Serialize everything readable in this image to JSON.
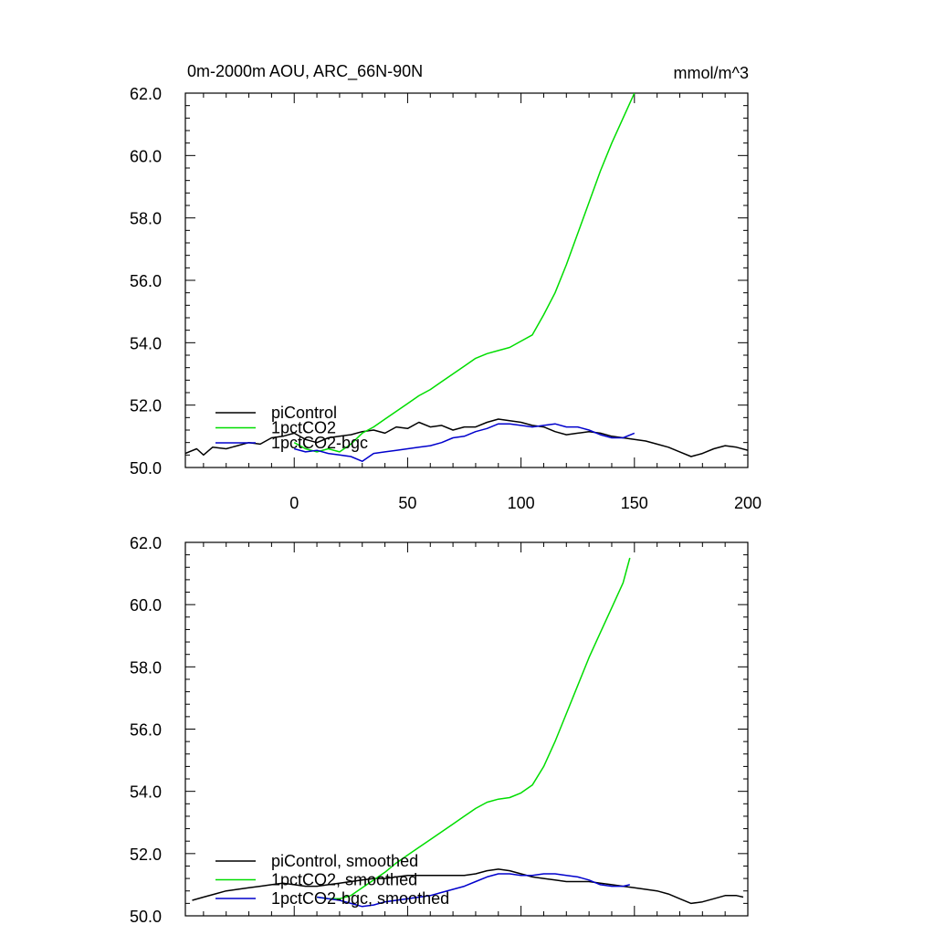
{
  "header": {
    "title": "0m-2000m AOU, ARC_66N-90N",
    "units": "mmol/m^3"
  },
  "chart_data": [
    {
      "type": "line",
      "xlim": [
        -48,
        200
      ],
      "ylim": [
        50.0,
        62.0
      ],
      "x_ticks": [
        0,
        50,
        100,
        150,
        200
      ],
      "y_ticks": [
        "50.0",
        "52.0",
        "54.0",
        "56.0",
        "58.0",
        "60.0",
        "62.0"
      ],
      "grid": false,
      "legend_position": "bottom-left",
      "series": [
        {
          "name": "piControl",
          "color": "#000000",
          "points": [
            [
              -48,
              50.45
            ],
            [
              -43,
              50.6
            ],
            [
              -40,
              50.4
            ],
            [
              -36,
              50.65
            ],
            [
              -30,
              50.6
            ],
            [
              -25,
              50.7
            ],
            [
              -20,
              50.8
            ],
            [
              -15,
              50.75
            ],
            [
              -10,
              50.95
            ],
            [
              -5,
              51.0
            ],
            [
              0,
              51.1
            ],
            [
              5,
              50.9
            ],
            [
              10,
              50.8
            ],
            [
              15,
              50.95
            ],
            [
              20,
              51.0
            ],
            [
              25,
              51.05
            ],
            [
              30,
              51.15
            ],
            [
              35,
              51.2
            ],
            [
              40,
              51.1
            ],
            [
              45,
              51.3
            ],
            [
              50,
              51.25
            ],
            [
              55,
              51.45
            ],
            [
              60,
              51.3
            ],
            [
              65,
              51.35
            ],
            [
              70,
              51.2
            ],
            [
              75,
              51.3
            ],
            [
              80,
              51.3
            ],
            [
              85,
              51.45
            ],
            [
              90,
              51.55
            ],
            [
              95,
              51.5
            ],
            [
              100,
              51.45
            ],
            [
              105,
              51.35
            ],
            [
              110,
              51.3
            ],
            [
              115,
              51.15
            ],
            [
              120,
              51.05
            ],
            [
              125,
              51.1
            ],
            [
              130,
              51.15
            ],
            [
              135,
              51.1
            ],
            [
              140,
              51.0
            ],
            [
              145,
              50.95
            ],
            [
              150,
              50.9
            ],
            [
              155,
              50.85
            ],
            [
              160,
              50.75
            ],
            [
              165,
              50.65
            ],
            [
              170,
              50.5
            ],
            [
              175,
              50.35
            ],
            [
              180,
              50.45
            ],
            [
              185,
              50.6
            ],
            [
              190,
              50.7
            ],
            [
              195,
              50.65
            ],
            [
              200,
              50.55
            ]
          ]
        },
        {
          "name": "1pctCO2",
          "color": "#00dd00",
          "points": [
            [
              0,
              50.8
            ],
            [
              5,
              50.6
            ],
            [
              10,
              50.5
            ],
            [
              15,
              50.6
            ],
            [
              20,
              50.5
            ],
            [
              25,
              50.75
            ],
            [
              30,
              51.1
            ],
            [
              35,
              51.3
            ],
            [
              40,
              51.55
            ],
            [
              45,
              51.8
            ],
            [
              50,
              52.05
            ],
            [
              55,
              52.3
            ],
            [
              60,
              52.5
            ],
            [
              65,
              52.75
            ],
            [
              70,
              53.0
            ],
            [
              75,
              53.25
            ],
            [
              80,
              53.5
            ],
            [
              85,
              53.65
            ],
            [
              90,
              53.75
            ],
            [
              95,
              53.85
            ],
            [
              100,
              54.05
            ],
            [
              105,
              54.25
            ],
            [
              110,
              54.9
            ],
            [
              115,
              55.6
            ],
            [
              120,
              56.5
            ],
            [
              125,
              57.5
            ],
            [
              130,
              58.5
            ],
            [
              135,
              59.5
            ],
            [
              140,
              60.4
            ],
            [
              145,
              61.2
            ],
            [
              150,
              62.0
            ]
          ]
        },
        {
          "name": "1pctCO2-bgc",
          "color": "#0000cc",
          "points": [
            [
              0,
              50.6
            ],
            [
              5,
              50.5
            ],
            [
              10,
              50.55
            ],
            [
              15,
              50.45
            ],
            [
              20,
              50.4
            ],
            [
              25,
              50.35
            ],
            [
              30,
              50.2
            ],
            [
              35,
              50.45
            ],
            [
              40,
              50.5
            ],
            [
              45,
              50.55
            ],
            [
              50,
              50.6
            ],
            [
              55,
              50.65
            ],
            [
              60,
              50.7
            ],
            [
              65,
              50.8
            ],
            [
              70,
              50.95
            ],
            [
              75,
              51.0
            ],
            [
              80,
              51.15
            ],
            [
              85,
              51.25
            ],
            [
              90,
              51.4
            ],
            [
              95,
              51.4
            ],
            [
              100,
              51.35
            ],
            [
              105,
              51.3
            ],
            [
              110,
              51.35
            ],
            [
              115,
              51.4
            ],
            [
              120,
              51.3
            ],
            [
              125,
              51.3
            ],
            [
              130,
              51.2
            ],
            [
              135,
              51.05
            ],
            [
              140,
              50.95
            ],
            [
              145,
              50.95
            ],
            [
              150,
              51.1
            ]
          ]
        }
      ]
    },
    {
      "type": "line",
      "xlim": [
        -48,
        200
      ],
      "ylim": [
        50.0,
        62.0
      ],
      "y_ticks": [
        "50.0",
        "52.0",
        "54.0",
        "56.0",
        "58.0",
        "60.0",
        "62.0"
      ],
      "grid": false,
      "legend_position": "bottom-left",
      "series": [
        {
          "name": "piControl, smoothed",
          "color": "#000000",
          "points": [
            [
              -45,
              50.5
            ],
            [
              -40,
              50.6
            ],
            [
              -35,
              50.7
            ],
            [
              -30,
              50.8
            ],
            [
              -25,
              50.85
            ],
            [
              -20,
              50.9
            ],
            [
              -15,
              50.95
            ],
            [
              -10,
              51.0
            ],
            [
              -5,
              51.05
            ],
            [
              0,
              51.0
            ],
            [
              5,
              50.95
            ],
            [
              10,
              50.95
            ],
            [
              15,
              51.0
            ],
            [
              20,
              51.05
            ],
            [
              25,
              51.1
            ],
            [
              30,
              51.15
            ],
            [
              35,
              51.2
            ],
            [
              40,
              51.2
            ],
            [
              45,
              51.25
            ],
            [
              50,
              51.3
            ],
            [
              55,
              51.3
            ],
            [
              60,
              51.3
            ],
            [
              65,
              51.3
            ],
            [
              70,
              51.3
            ],
            [
              75,
              51.3
            ],
            [
              80,
              51.35
            ],
            [
              85,
              51.45
            ],
            [
              90,
              51.5
            ],
            [
              95,
              51.45
            ],
            [
              100,
              51.35
            ],
            [
              105,
              51.25
            ],
            [
              110,
              51.2
            ],
            [
              115,
              51.15
            ],
            [
              120,
              51.1
            ],
            [
              125,
              51.1
            ],
            [
              130,
              51.1
            ],
            [
              135,
              51.05
            ],
            [
              140,
              51.0
            ],
            [
              145,
              50.95
            ],
            [
              150,
              50.9
            ],
            [
              155,
              50.85
            ],
            [
              160,
              50.8
            ],
            [
              165,
              50.7
            ],
            [
              170,
              50.55
            ],
            [
              175,
              50.4
            ],
            [
              180,
              50.45
            ],
            [
              185,
              50.55
            ],
            [
              190,
              50.65
            ],
            [
              195,
              50.65
            ],
            [
              198,
              50.6
            ]
          ]
        },
        {
          "name": "1pctCO2, smoothed",
          "color": "#00dd00",
          "points": [
            [
              10,
              50.6
            ],
            [
              15,
              50.55
            ],
            [
              20,
              50.55
            ],
            [
              25,
              50.65
            ],
            [
              30,
              50.9
            ],
            [
              35,
              51.15
            ],
            [
              40,
              51.4
            ],
            [
              45,
              51.7
            ],
            [
              50,
              51.95
            ],
            [
              55,
              52.2
            ],
            [
              60,
              52.45
            ],
            [
              65,
              52.7
            ],
            [
              70,
              52.95
            ],
            [
              75,
              53.2
            ],
            [
              80,
              53.45
            ],
            [
              85,
              53.65
            ],
            [
              90,
              53.75
            ],
            [
              95,
              53.8
            ],
            [
              100,
              53.95
            ],
            [
              105,
              54.2
            ],
            [
              110,
              54.8
            ],
            [
              115,
              55.6
            ],
            [
              120,
              56.5
            ],
            [
              125,
              57.4
            ],
            [
              130,
              58.3
            ],
            [
              135,
              59.1
            ],
            [
              140,
              59.9
            ],
            [
              145,
              60.7
            ],
            [
              148,
              61.5
            ]
          ]
        },
        {
          "name": "1pctCO2-bgc, smoothed",
          "color": "#0000cc",
          "points": [
            [
              10,
              50.6
            ],
            [
              15,
              50.55
            ],
            [
              20,
              50.5
            ],
            [
              25,
              50.4
            ],
            [
              30,
              50.3
            ],
            [
              35,
              50.35
            ],
            [
              40,
              50.45
            ],
            [
              45,
              50.5
            ],
            [
              50,
              50.55
            ],
            [
              55,
              50.6
            ],
            [
              60,
              50.65
            ],
            [
              65,
              50.75
            ],
            [
              70,
              50.85
            ],
            [
              75,
              50.95
            ],
            [
              80,
              51.1
            ],
            [
              85,
              51.25
            ],
            [
              90,
              51.35
            ],
            [
              95,
              51.35
            ],
            [
              100,
              51.3
            ],
            [
              105,
              51.3
            ],
            [
              110,
              51.35
            ],
            [
              115,
              51.35
            ],
            [
              120,
              51.3
            ],
            [
              125,
              51.25
            ],
            [
              130,
              51.15
            ],
            [
              135,
              51.0
            ],
            [
              140,
              50.95
            ],
            [
              145,
              50.95
            ],
            [
              148,
              51.0
            ]
          ]
        }
      ]
    }
  ]
}
